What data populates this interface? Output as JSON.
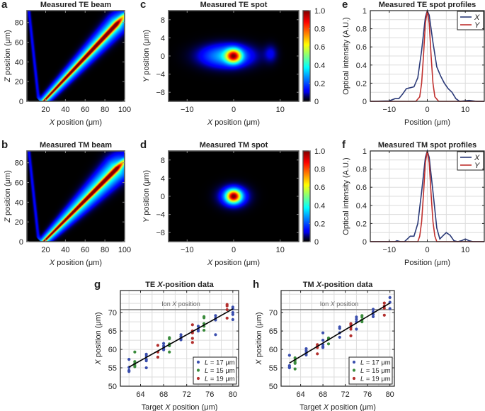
{
  "chart_data": [
    {
      "id": "a",
      "label": "a",
      "type": "heatmap",
      "title": "Measured TE beam",
      "xlabel": "X position (μm)",
      "ylabel": "Z position (μm)",
      "xlim": [
        1,
        100
      ],
      "ylim": [
        0,
        92
      ],
      "xticks": [
        20,
        40,
        60,
        80,
        100
      ],
      "xticklabels": [
        "20",
        "40",
        "60",
        "80",
        "100"
      ],
      "yticks": [
        0,
        20,
        40,
        60,
        80
      ],
      "yticklabels": [
        "0",
        "20",
        "40",
        "60",
        "80"
      ],
      "colormap": "jet",
      "background": "#000000",
      "beam_start": [
        18,
        0
      ],
      "beam_end": [
        100,
        87
      ],
      "beam_peak_intensity": 1.0
    },
    {
      "id": "b",
      "label": "b",
      "type": "heatmap",
      "title": "Measured TM beam",
      "xlabel": "X position (μm)",
      "ylabel": "Z position (μm)",
      "xlim": [
        1,
        100
      ],
      "ylim": [
        0,
        92
      ],
      "xticks": [
        20,
        40,
        60,
        80,
        100
      ],
      "xticklabels": [
        "20",
        "40",
        "60",
        "80",
        "100"
      ],
      "yticks": [
        0,
        20,
        40,
        60,
        80
      ],
      "yticklabels": [
        "0",
        "20",
        "40",
        "60",
        "80"
      ],
      "colormap": "jet",
      "background": "#000000",
      "beam_start": [
        18,
        0
      ],
      "beam_end": [
        100,
        82
      ],
      "beam_peak_intensity": 1.0
    },
    {
      "id": "c",
      "label": "c",
      "type": "heatmap",
      "title": "Measured TE spot",
      "xlabel": "X position (μm)",
      "ylabel": "Y position (μm)",
      "xlim": [
        -14,
        14
      ],
      "ylim": [
        -10,
        10
      ],
      "xticks": [
        -10,
        0,
        10
      ],
      "xticklabels": [
        "−10",
        "0",
        "10"
      ],
      "yticks": [
        -8,
        -4,
        0,
        4,
        8
      ],
      "yticklabels": [
        "−8",
        "−4",
        "0",
        "4",
        "8"
      ],
      "colormap": "jet",
      "background": "#000000",
      "spot_center": [
        0,
        0
      ],
      "spot_peak_intensity": 1.0,
      "colorbar": {
        "range": [
          0,
          1
        ],
        "ticks": [
          0,
          0.2,
          0.4,
          0.6,
          0.8,
          1.0
        ],
        "ticklabels": [
          "0",
          "0.2",
          "0.4",
          "0.6",
          "0.8",
          "1.0"
        ]
      }
    },
    {
      "id": "d",
      "label": "d",
      "type": "heatmap",
      "title": "Measured TM spot",
      "xlabel": "X position (μm)",
      "ylabel": "Y position (μm)",
      "xlim": [
        -14,
        14
      ],
      "ylim": [
        -10,
        10
      ],
      "xticks": [
        -10,
        0,
        10
      ],
      "xticklabels": [
        "−10",
        "0",
        "10"
      ],
      "yticks": [
        -8,
        -4,
        0,
        4,
        8
      ],
      "yticklabels": [
        "−8",
        "−4",
        "0",
        "4",
        "8"
      ],
      "colormap": "jet",
      "background": "#000000",
      "spot_center": [
        0,
        0
      ],
      "spot_peak_intensity": 1.0,
      "colorbar": {
        "range": [
          0,
          1
        ],
        "ticks": [
          0,
          0.2,
          0.4,
          0.6,
          0.8,
          1.0
        ],
        "ticklabels": [
          "0",
          "0.2",
          "0.4",
          "0.6",
          "0.8",
          "1.0"
        ]
      }
    },
    {
      "id": "e",
      "label": "e",
      "type": "line",
      "title": "Measured TE spot profiles",
      "xlabel": "Position (μm)",
      "ylabel": "Optical intensity (A.U.)",
      "xlim": [
        -15,
        15
      ],
      "ylim": [
        0,
        1
      ],
      "grid": true,
      "legend": "top-right",
      "xticks": [
        -10,
        0,
        10
      ],
      "xticklabels": [
        "−10",
        "0",
        "10"
      ],
      "yticks": [
        0,
        0.2,
        0.4,
        0.6,
        0.8,
        1
      ],
      "yticklabels": [
        "0",
        "0.2",
        "0.4",
        "0.6",
        "0.8",
        "1"
      ],
      "series": [
        {
          "name": "X",
          "color": "#2b3a78",
          "x": [
            -15,
            -10,
            -8.5,
            -7.5,
            -6.5,
            -5.5,
            -4.5,
            -3.5,
            -2.5,
            -1.5,
            -0.5,
            0,
            0.5,
            1.5,
            2.5,
            3.5,
            4.5,
            5.5,
            6.5,
            7.5,
            8.5,
            11,
            13,
            15
          ],
          "y": [
            0,
            0.005,
            0.03,
            0.03,
            0.08,
            0.14,
            0.15,
            0.16,
            0.26,
            0.56,
            0.93,
            1,
            0.95,
            0.65,
            0.38,
            0.28,
            0.2,
            0.14,
            0.1,
            0.03,
            0,
            0.01,
            0,
            0
          ]
        },
        {
          "name": "Y",
          "color": "#c0312f",
          "x": [
            -15,
            -3,
            -2,
            -1.5,
            -1,
            -0.5,
            0,
            0.5,
            1,
            1.5,
            2,
            3,
            15
          ],
          "y": [
            0,
            0,
            0.05,
            0.2,
            0.5,
            0.86,
            1,
            0.86,
            0.5,
            0.2,
            0.05,
            0,
            0
          ]
        }
      ]
    },
    {
      "id": "f",
      "label": "f",
      "type": "line",
      "title": "Measured TM spot profiles",
      "xlabel": "Position (μm)",
      "ylabel": "Optical intensity (A.U.)",
      "xlim": [
        -15,
        15
      ],
      "ylim": [
        0,
        1
      ],
      "grid": true,
      "legend": "top-right",
      "xticks": [
        -10,
        0,
        10
      ],
      "xticklabels": [
        "−10",
        "0",
        "10"
      ],
      "yticks": [
        0,
        0.2,
        0.4,
        0.6,
        0.8,
        1
      ],
      "yticklabels": [
        "0",
        "0.2",
        "0.4",
        "0.6",
        "0.8",
        "1"
      ],
      "series": [
        {
          "name": "X",
          "color": "#2b3a78",
          "x": [
            -15,
            -8.5,
            -8,
            -7,
            -6,
            -5,
            -4.5,
            -3.5,
            -2.5,
            -1.5,
            -0.5,
            0,
            0.5,
            1.5,
            2.5,
            3.3,
            4,
            5,
            6,
            7,
            8,
            9,
            10,
            11,
            12,
            15
          ],
          "y": [
            0,
            0,
            0.01,
            0,
            0,
            0.04,
            0.06,
            0.06,
            0.2,
            0.55,
            0.93,
            1,
            0.93,
            0.55,
            0.15,
            0.03,
            0.06,
            0.1,
            0.07,
            0.01,
            0,
            0.01,
            0.03,
            0.01,
            0,
            0
          ]
        },
        {
          "name": "Y",
          "color": "#c0312f",
          "x": [
            -15,
            -2.5,
            -2,
            -1.5,
            -1,
            -0.5,
            0,
            0.5,
            1,
            1.5,
            2,
            2.5,
            15
          ],
          "y": [
            0,
            0,
            0.06,
            0.22,
            0.52,
            0.87,
            1,
            0.87,
            0.52,
            0.22,
            0.06,
            0,
            0
          ]
        }
      ]
    },
    {
      "id": "g",
      "label": "g",
      "type": "scatter",
      "title": "TE X-position data",
      "xlabel": "Target X position (μm)",
      "ylabel": "X position (μm)",
      "xlim": [
        60.5,
        81
      ],
      "ylim": [
        50,
        76
      ],
      "grid": true,
      "legend": "bottom-right",
      "xticks": [
        64,
        68,
        72,
        76,
        80
      ],
      "xticklabels": [
        "64",
        "68",
        "72",
        "76",
        "80"
      ],
      "yticks": [
        50,
        55,
        60,
        65,
        70
      ],
      "yticklabels": [
        "50",
        "55",
        "60",
        "65",
        "70"
      ],
      "reference_line": {
        "label": "Ion X position",
        "y": 70.8
      },
      "fit_line": {
        "x": [
          62,
          80
        ],
        "y": [
          55.2,
          71.0
        ]
      },
      "series": [
        {
          "name": "L = 17 μm",
          "color": "#3b4fae",
          "points": [
            [
              62,
              57.3
            ],
            [
              62,
              55.1
            ],
            [
              62,
              54.3
            ],
            [
              62,
              54.0
            ],
            [
              65,
              58.7
            ],
            [
              65,
              58.2
            ],
            [
              65,
              57.3
            ],
            [
              65,
              56.9
            ],
            [
              65,
              55.0
            ],
            [
              68,
              61.6
            ],
            [
              68,
              60.9
            ],
            [
              68,
              60.3
            ],
            [
              68,
              59.9
            ],
            [
              71,
              64.0
            ],
            [
              71,
              63.5
            ],
            [
              71,
              63.0
            ],
            [
              71,
              62.6
            ],
            [
              74,
              66.3
            ],
            [
              74,
              65.5
            ],
            [
              74,
              65.0
            ],
            [
              77,
              69.2
            ],
            [
              77,
              68.5
            ],
            [
              77,
              68.0
            ],
            [
              77,
              64.0
            ],
            [
              80,
              71.5
            ],
            [
              80,
              71.0
            ],
            [
              80,
              70.0
            ],
            [
              80,
              69.5
            ],
            [
              80,
              68.1
            ]
          ]
        },
        {
          "name": "L = 15 μm",
          "color": "#3a8b3c",
          "points": [
            [
              63,
              59.3
            ],
            [
              63,
              56.7
            ],
            [
              63,
              56.2
            ],
            [
              63,
              55.7
            ],
            [
              63,
              55.3
            ],
            [
              69,
              63.2
            ],
            [
              69,
              62.9
            ],
            [
              69,
              61.5
            ],
            [
              69,
              61.0
            ],
            [
              69,
              59.3
            ],
            [
              75,
              68.9
            ],
            [
              75,
              68.6
            ],
            [
              75,
              67.0
            ],
            [
              75,
              66.3
            ],
            [
              75,
              65.2
            ]
          ]
        },
        {
          "name": "L = 19 μm",
          "color": "#b3302e",
          "points": [
            [
              67,
              61.1
            ],
            [
              67,
              59.3
            ],
            [
              67,
              57.9
            ],
            [
              73,
              66.7
            ],
            [
              73,
              65.0
            ],
            [
              73,
              64.5
            ],
            [
              73,
              63.0
            ],
            [
              73,
              61.9
            ],
            [
              79,
              72.2
            ],
            [
              79,
              71.8
            ],
            [
              79,
              70.8
            ],
            [
              79,
              68.5
            ]
          ]
        }
      ]
    },
    {
      "id": "h",
      "label": "h",
      "type": "scatter",
      "title": "TM X-position data",
      "xlabel": "Target X position (μm)",
      "ylabel": "X position (μm)",
      "xlim": [
        60.5,
        80.8
      ],
      "ylim": [
        50,
        76
      ],
      "grid": true,
      "legend": "bottom-right",
      "xticks": [
        64,
        68,
        72,
        76,
        80
      ],
      "xticklabels": [
        "64",
        "68",
        "72",
        "76",
        "80"
      ],
      "yticks": [
        50,
        55,
        60,
        65,
        70
      ],
      "yticklabels": [
        "50",
        "55",
        "60",
        "65",
        "70"
      ],
      "reference_line": {
        "label": "Ion X position",
        "y": 70.8
      },
      "fit_line": {
        "x": [
          62,
          80
        ],
        "y": [
          56.3,
          72.6
        ]
      },
      "series": [
        {
          "name": "L = 17 μm",
          "color": "#3b4fae",
          "points": [
            [
              62,
              58.4
            ],
            [
              62,
              55.6
            ],
            [
              62,
              55.2
            ],
            [
              62,
              55.0
            ],
            [
              65,
              60.2
            ],
            [
              65,
              59.6
            ],
            [
              65,
              59.0
            ],
            [
              65,
              58.5
            ],
            [
              68,
              64.5
            ],
            [
              68,
              62.5
            ],
            [
              68,
              61.3
            ],
            [
              68,
              60.8
            ],
            [
              68,
              60.5
            ],
            [
              71,
              66.1
            ],
            [
              71,
              65.7
            ],
            [
              71,
              64.5
            ],
            [
              71,
              63.3
            ],
            [
              74,
              68.8
            ],
            [
              74,
              68.2
            ],
            [
              74,
              67.5
            ],
            [
              74,
              65.5
            ],
            [
              77,
              70.9
            ],
            [
              77,
              70.2
            ],
            [
              77,
              69.5
            ],
            [
              77,
              68.9
            ],
            [
              80,
              74.1
            ],
            [
              80,
              72.8
            ],
            [
              80,
              71.1
            ]
          ]
        },
        {
          "name": "L = 15 μm",
          "color": "#3a8b3c",
          "points": [
            [
              63,
              57.7
            ],
            [
              63,
              57.0
            ],
            [
              63,
              56.5
            ],
            [
              63,
              56.2
            ],
            [
              63,
              54.7
            ],
            [
              69,
              63.1
            ],
            [
              69,
              62.8
            ],
            [
              69,
              61.5
            ],
            [
              75,
              69.2
            ],
            [
              75,
              68.8
            ],
            [
              75,
              68.0
            ],
            [
              75,
              67.5
            ]
          ]
        },
        {
          "name": "L = 19 μm",
          "color": "#b3302e",
          "points": [
            [
              67,
              61.3
            ],
            [
              67,
              60.9
            ],
            [
              67,
              60.5
            ],
            [
              67,
              58.8
            ],
            [
              73,
              67.0
            ],
            [
              73,
              66.6
            ],
            [
              73,
              66.0
            ],
            [
              73,
              65.5
            ],
            [
              73,
              63.7
            ],
            [
              79,
              72.6
            ],
            [
              79,
              71.8
            ],
            [
              79,
              71.2
            ],
            [
              79,
              69.3
            ]
          ]
        }
      ]
    }
  ]
}
